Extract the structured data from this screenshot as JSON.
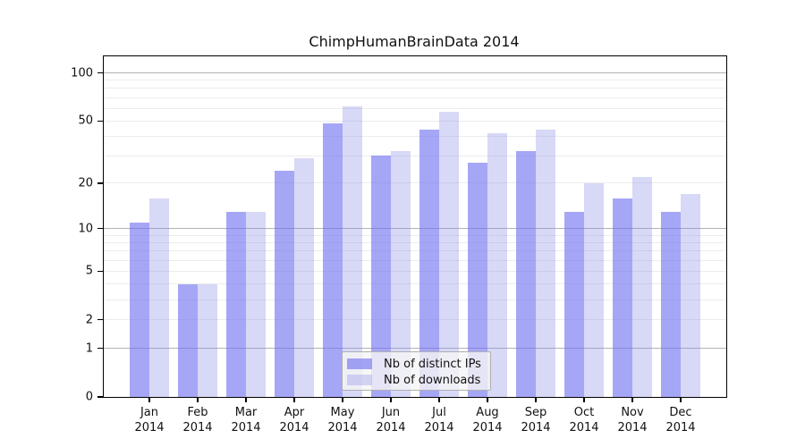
{
  "figure": {
    "title": "ChimpHumanBrainData 2014"
  },
  "chart_data": {
    "type": "bar",
    "title": "ChimpHumanBrainData 2014",
    "xlabel": "",
    "ylabel": "",
    "categories": [
      "Jan",
      "Feb",
      "Mar",
      "Apr",
      "May",
      "Jun",
      "Jul",
      "Aug",
      "Sep",
      "Oct",
      "Nov",
      "Dec"
    ],
    "category_year": "2014",
    "series": [
      {
        "name": "Nb of distinct IPs",
        "color": "rgba(111,111,240,0.62)",
        "values": [
          11,
          4,
          13,
          24,
          48,
          30,
          44,
          27,
          32,
          13,
          16,
          13
        ]
      },
      {
        "name": "Nb of downloads",
        "color": "rgba(129,129,229,0.31)",
        "values": [
          16,
          4,
          13,
          29,
          62,
          32,
          57,
          42,
          44,
          20,
          22,
          17
        ]
      }
    ],
    "yscale": "log1p",
    "ylim": [
      0,
      127
    ],
    "yticks": [
      100,
      50,
      20,
      10,
      5,
      2,
      1,
      0
    ],
    "minor_gridlines": [
      2,
      3,
      4,
      5,
      6,
      7,
      8,
      9,
      20,
      30,
      40,
      50,
      60,
      70,
      80,
      90
    ],
    "decade_gridlines": [
      1,
      10,
      100
    ],
    "grid": true,
    "legend_position": "bottom-center",
    "colors": {
      "axis": "#000000",
      "minor_grid": "#ececec",
      "decade_grid": "#b3b3b3",
      "legend_bg": "rgba(245,245,245,0.8)",
      "legend_border": "#b0b0b0"
    }
  }
}
